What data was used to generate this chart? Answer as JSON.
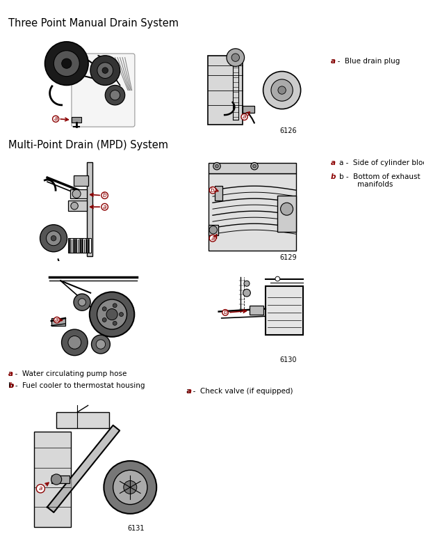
{
  "title1": "Three Point Manual Drain System",
  "title2": "Multi-Point Drain (MPD) System",
  "bg_color": "#ffffff",
  "text_color": "#000000",
  "label_color": "#8B0000",
  "arrow_color": "#8B0000",
  "fig_numbers": [
    "6126",
    "6129",
    "6130",
    "6131"
  ],
  "section1_label": "a -  Blue drain plug",
  "section2_label_a": "a -  Side of cylinder block",
  "section2_label_b": "b -  Bottom of exhaust\n        manifolds",
  "section3_label_a": "a -  Water circulating pump hose",
  "section3_label_b": "b -  Fuel cooler to thermostat housing",
  "section4_label": "a -  Check valve (if equipped)",
  "font_size_title": 10.5,
  "font_size_label": 7.5,
  "font_size_fignum": 7
}
